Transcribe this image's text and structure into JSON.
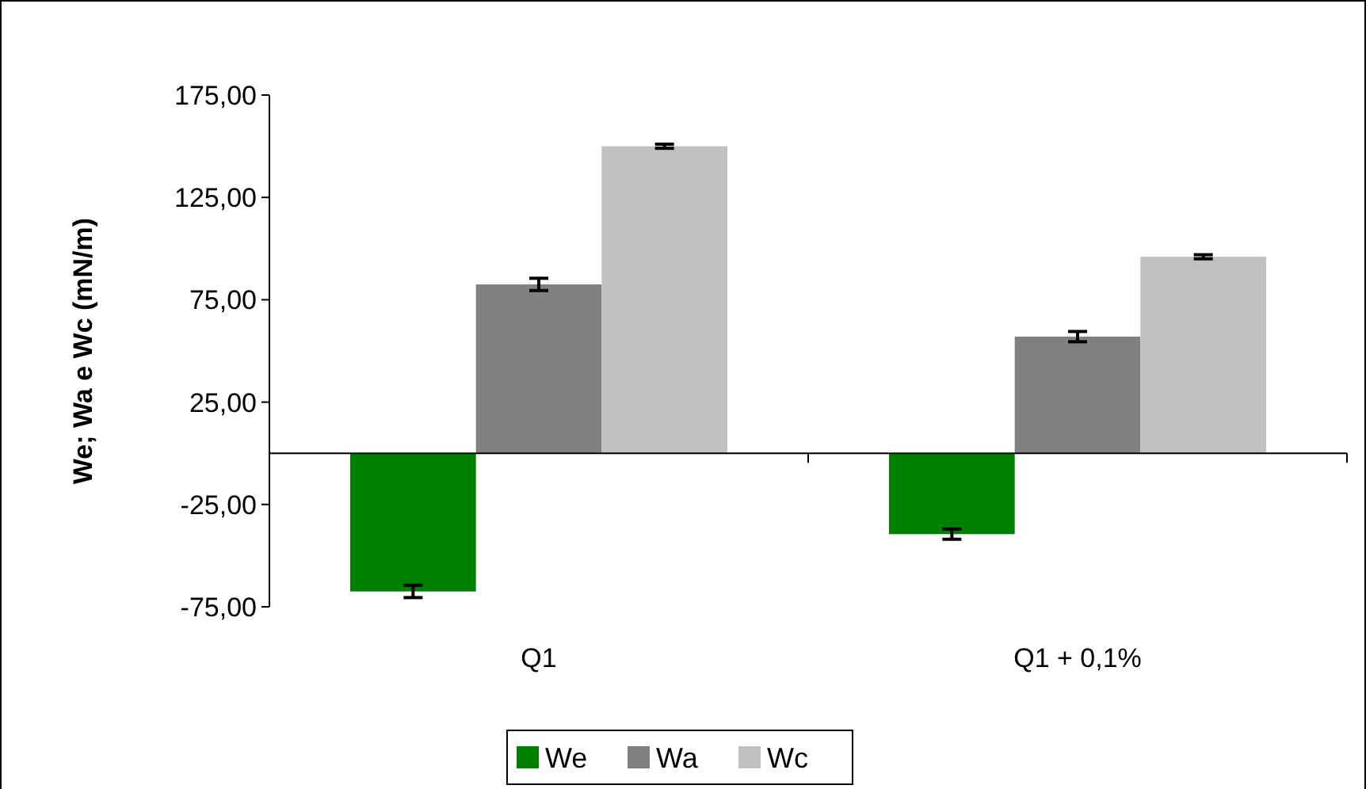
{
  "chart_data": {
    "type": "bar",
    "ylabel": "We; Wa e Wc (mN/m)",
    "categories": [
      "Q1",
      "Q1 + 0,1%"
    ],
    "series": [
      {
        "name": "We",
        "color": "#008000",
        "values": [
          -67.5,
          -39.5
        ],
        "errors": [
          3,
          2.5
        ]
      },
      {
        "name": "Wa",
        "color": "#808080",
        "values": [
          82.5,
          57
        ],
        "errors": [
          3,
          2.5
        ]
      },
      {
        "name": "Wc",
        "color": "#c0c0c0",
        "values": [
          150,
          96
        ],
        "errors": [
          1,
          1
        ]
      }
    ],
    "ylim": [
      -75,
      175
    ],
    "yticks": [
      {
        "value": 175,
        "label": "175,00"
      },
      {
        "value": 125,
        "label": "125,00"
      },
      {
        "value": 75,
        "label": "75,00"
      },
      {
        "value": 25,
        "label": "25,00"
      },
      {
        "value": -25,
        "label": "-25,00"
      },
      {
        "value": -75,
        "label": "-75,00"
      }
    ],
    "grid": false,
    "legend": "bottom"
  }
}
